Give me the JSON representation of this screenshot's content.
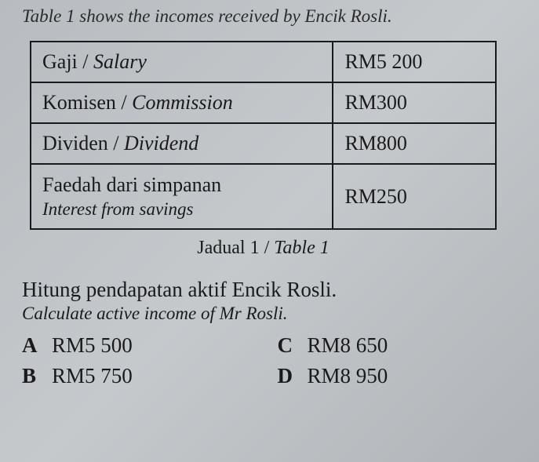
{
  "intro": "Table 1 shows the incomes received by Encik Rosli.",
  "table": {
    "rows": [
      {
        "label_my": "Gaji",
        "label_en": "Salary",
        "value": "RM5 200"
      },
      {
        "label_my": "Komisen",
        "label_en": "Commission",
        "value": "RM300"
      },
      {
        "label_my": "Dividen",
        "label_en": "Dividend",
        "value": "RM800"
      },
      {
        "label_my": "Faedah dari simpanan",
        "label_en": "Interest from savings",
        "value": "RM250",
        "multiline": true
      }
    ],
    "caption_my": "Jadual 1",
    "caption_en": "Table 1"
  },
  "question": {
    "my": "Hitung pendapatan aktif Encik Rosli.",
    "en": "Calculate active income of Mr Rosli."
  },
  "options": [
    {
      "letter": "A",
      "text": "RM5 500"
    },
    {
      "letter": "C",
      "text": "RM8 650"
    },
    {
      "letter": "B",
      "text": "RM5 750"
    },
    {
      "letter": "D",
      "text": "RM8 950"
    }
  ],
  "colors": {
    "background": "#bcc0c4",
    "text": "#1a1a1a",
    "border": "#1a1a1a"
  }
}
